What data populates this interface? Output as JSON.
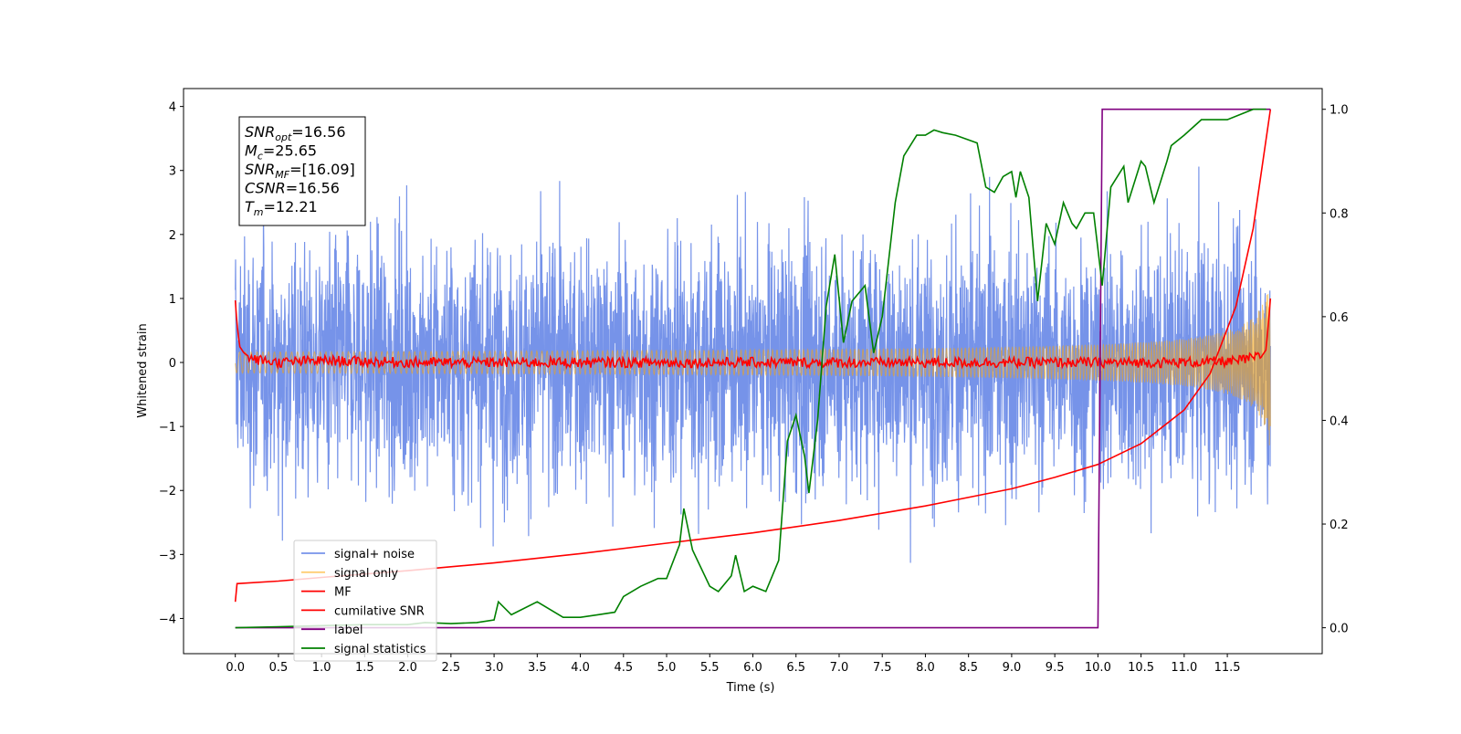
{
  "chart_data": {
    "type": "line",
    "xlabel": "Time (s)",
    "ylabel": "Whitened strain",
    "xlim": [
      -0.6,
      12.6
    ],
    "ylim": [
      -4.55,
      4.28
    ],
    "y2lim": [
      -0.05,
      1.04
    ],
    "x_ticks": [
      "0.0",
      "0.5",
      "1.0",
      "1.5",
      "2.0",
      "2.5",
      "3.0",
      "3.5",
      "4.0",
      "4.5",
      "5.0",
      "5.5",
      "6.0",
      "6.5",
      "7.0",
      "7.5",
      "8.0",
      "8.5",
      "9.0",
      "9.5",
      "10.0",
      "10.5",
      "11.0",
      "11.5"
    ],
    "y_ticks": [
      "4",
      "3",
      "2",
      "1",
      "0",
      "−1",
      "−2",
      "−3",
      "−4"
    ],
    "y2_ticks": [
      "1.0",
      "0.8",
      "0.6",
      "0.4",
      "0.2",
      "0.0"
    ],
    "legend_position": "lower-left",
    "annotation": [
      {
        "base": "SNR",
        "sub": "opt",
        "value": "=16.56"
      },
      {
        "base": "M",
        "sub": "c",
        "value": "=25.65"
      },
      {
        "base": "SNR",
        "sub": "MF",
        "value": "=[16.09]"
      },
      {
        "base": "CSNR",
        "sub": "",
        "value": "=16.56"
      },
      {
        "base": "T",
        "sub": "m",
        "value": "=12.21"
      }
    ],
    "series": [
      {
        "name": "signal+ noise",
        "axis": "left",
        "color": "#4169e1",
        "kind": "noise",
        "x_range": [
          0,
          12
        ],
        "envelope": 2.5
      },
      {
        "name": "signal only",
        "axis": "left",
        "color": "#ffa500",
        "kind": "chirp",
        "x_range": [
          0,
          12
        ],
        "amplitude_end": 1.4
      },
      {
        "name": "MF",
        "axis": "left",
        "color": "#ff0000",
        "x": [
          0.0,
          0.02,
          0.05,
          0.1,
          0.2,
          0.5,
          1.0,
          2.0,
          4.0,
          6.0,
          8.0,
          10.0,
          11.0,
          11.6,
          11.9,
          11.95,
          12.0
        ],
        "y": [
          0.97,
          0.6,
          0.25,
          0.15,
          0.05,
          0.0,
          0.03,
          0.0,
          0.0,
          0.0,
          0.0,
          0.0,
          0.0,
          0.02,
          0.1,
          0.2,
          1.0
        ]
      },
      {
        "name": "cumilative SNR",
        "axis": "right",
        "color": "#ff0000",
        "x": [
          0.0,
          0.02,
          0.5,
          1.0,
          2.0,
          3.0,
          4.0,
          5.0,
          6.0,
          7.0,
          8.0,
          9.0,
          9.5,
          10.0,
          10.5,
          11.0,
          11.3,
          11.6,
          11.8,
          12.0
        ],
        "y": [
          0.05,
          0.085,
          0.09,
          0.097,
          0.11,
          0.125,
          0.143,
          0.163,
          0.183,
          0.207,
          0.235,
          0.268,
          0.29,
          0.315,
          0.355,
          0.42,
          0.49,
          0.62,
          0.77,
          1.0
        ]
      },
      {
        "name": "label",
        "axis": "right",
        "color": "#800080",
        "x": [
          0.0,
          10.0,
          10.05,
          12.0
        ],
        "y": [
          0.0,
          0.0,
          1.0,
          1.0
        ]
      },
      {
        "name": "signal statistics",
        "axis": "right",
        "color": "#008000",
        "x": [
          0.0,
          0.5,
          1.0,
          1.5,
          2.0,
          2.2,
          2.5,
          2.8,
          3.0,
          3.05,
          3.2,
          3.5,
          3.8,
          4.0,
          4.2,
          4.4,
          4.5,
          4.7,
          4.9,
          5.0,
          5.15,
          5.2,
          5.3,
          5.5,
          5.6,
          5.75,
          5.8,
          5.9,
          6.0,
          6.15,
          6.3,
          6.4,
          6.5,
          6.6,
          6.65,
          6.75,
          6.85,
          6.95,
          7.05,
          7.15,
          7.3,
          7.4,
          7.5,
          7.65,
          7.75,
          7.9,
          8.0,
          8.1,
          8.2,
          8.35,
          8.6,
          8.7,
          8.8,
          8.9,
          9.0,
          9.05,
          9.1,
          9.2,
          9.3,
          9.4,
          9.5,
          9.6,
          9.7,
          9.75,
          9.85,
          9.95,
          10.05,
          10.15,
          10.3,
          10.35,
          10.5,
          10.55,
          10.65,
          10.8,
          10.85,
          11.0,
          11.2,
          11.5,
          11.8,
          11.95
        ],
        "y": [
          0.0,
          0.002,
          0.004,
          0.006,
          0.006,
          0.01,
          0.008,
          0.01,
          0.015,
          0.05,
          0.025,
          0.05,
          0.02,
          0.02,
          0.025,
          0.03,
          0.06,
          0.08,
          0.095,
          0.095,
          0.16,
          0.23,
          0.15,
          0.08,
          0.07,
          0.1,
          0.14,
          0.07,
          0.08,
          0.07,
          0.13,
          0.36,
          0.41,
          0.33,
          0.26,
          0.4,
          0.62,
          0.72,
          0.55,
          0.63,
          0.66,
          0.53,
          0.6,
          0.82,
          0.91,
          0.95,
          0.95,
          0.96,
          0.955,
          0.95,
          0.935,
          0.85,
          0.84,
          0.87,
          0.88,
          0.83,
          0.88,
          0.83,
          0.63,
          0.78,
          0.74,
          0.82,
          0.78,
          0.77,
          0.8,
          0.8,
          0.66,
          0.85,
          0.89,
          0.82,
          0.9,
          0.89,
          0.82,
          0.9,
          0.93,
          0.95,
          0.98,
          0.98,
          1.0,
          1.0
        ]
      }
    ]
  }
}
